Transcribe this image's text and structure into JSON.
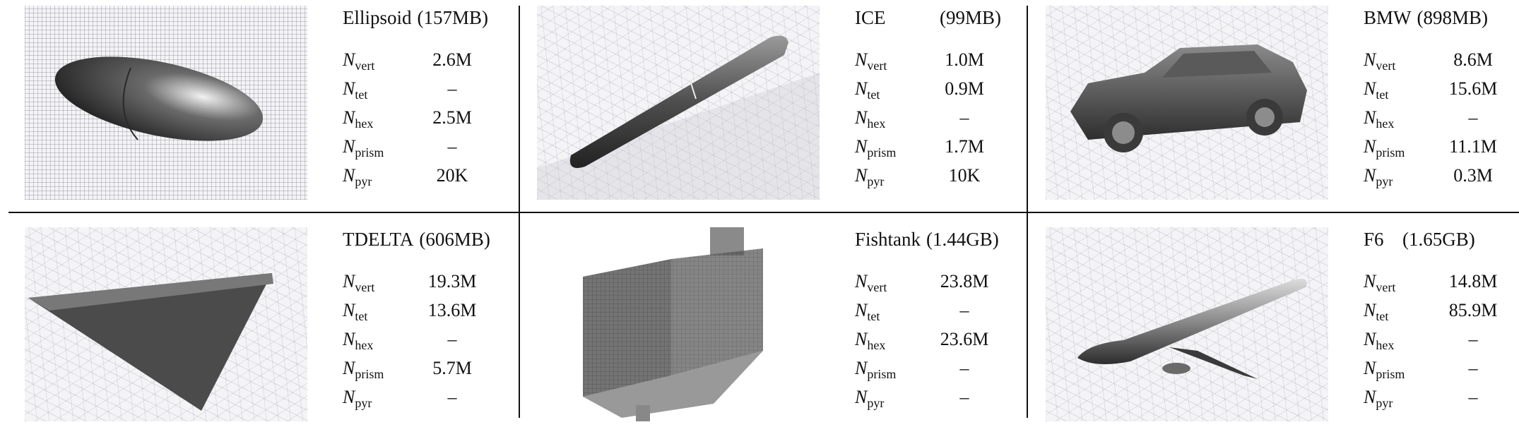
{
  "labels": {
    "n": "N",
    "vert": "vert",
    "tet": "tet",
    "hex": "hex",
    "prism": "prism",
    "pyr": "pyr"
  },
  "datasets": [
    {
      "name": "Ellipsoid",
      "size": "(157MB)",
      "image": "ellipsoid-mesh",
      "vert": "2.6M",
      "tet": "–",
      "hex": "2.5M",
      "prism": "–",
      "pyr": "20K"
    },
    {
      "name": "ICE",
      "size": "(99MB)",
      "image": "ice-train-mesh",
      "vert": "1.0M",
      "tet": "0.9M",
      "hex": "–",
      "prism": "1.7M",
      "pyr": "10K"
    },
    {
      "name": "BMW",
      "size": "(898MB)",
      "image": "bmw-car-mesh",
      "vert": "8.6M",
      "tet": "15.6M",
      "hex": "–",
      "prism": "11.1M",
      "pyr": "0.3M"
    },
    {
      "name": "TDELTA",
      "size": "(606MB)",
      "image": "delta-wing-mesh",
      "vert": "19.3M",
      "tet": "13.6M",
      "hex": "–",
      "prism": "5.7M",
      "pyr": "–"
    },
    {
      "name": "Fishtank",
      "size": "(1.44GB)",
      "image": "fishtank-mesh",
      "vert": "23.8M",
      "tet": "–",
      "hex": "23.6M",
      "prism": "–",
      "pyr": "–"
    },
    {
      "name": "F6",
      "size": "(1.65GB)",
      "image": "f6-aircraft-mesh",
      "vert": "14.8M",
      "tet": "85.9M",
      "hex": "–",
      "prism": "–",
      "pyr": "–"
    }
  ]
}
